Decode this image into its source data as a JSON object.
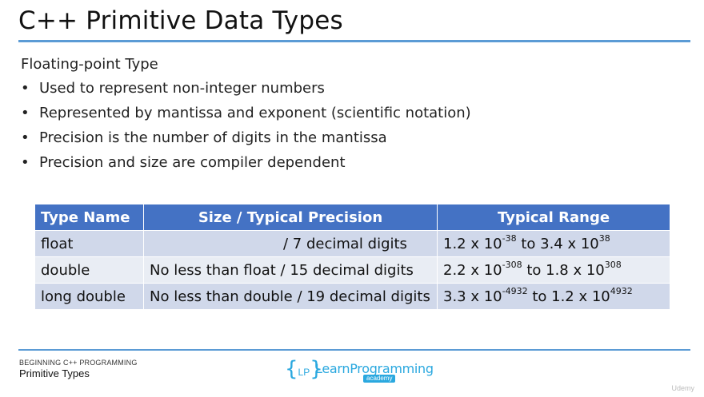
{
  "slide": {
    "title": "C++ Primitive Data Types",
    "subheading": "Floating-point Type",
    "bullets": [
      "Used to represent non-integer numbers",
      "Represented by mantissa and exponent (scientific notation)",
      "Precision is the number of digits in the mantissa",
      "Precision and size are compiler dependent"
    ]
  },
  "table": {
    "headers": [
      "Type Name",
      "Size / Typical Precision",
      "Typical Range"
    ],
    "rows": [
      {
        "type": "float",
        "precision": "/ 7 decimal digits",
        "range_low_mant": "1.2 x 10",
        "range_low_exp": "-38",
        "range_to": " to 3.4 x 10",
        "range_high_exp": "38"
      },
      {
        "type": "double",
        "precision": "No less than float / 15 decimal digits",
        "range_low_mant": "2.2 x 10",
        "range_low_exp": "-308",
        "range_to": " to 1.8 x 10",
        "range_high_exp": "308"
      },
      {
        "type": "long double",
        "precision": "No less than double / 19 decimal digits",
        "range_low_mant": "3.3 x 10",
        "range_low_exp": "-4932",
        "range_to": " to 1.2 x 10",
        "range_high_exp": "4932"
      }
    ]
  },
  "footer": {
    "course": "BEGINNING C++ PROGRAMMING",
    "section": "Primitive Types",
    "logo_bracket_open": "{",
    "logo_lp": "LP",
    "logo_bracket_close": "}",
    "logo_name": "LearnProgramming",
    "logo_tag": "academy",
    "watermark": "Udemy"
  },
  "colors": {
    "accent_rule": "#5b9bd5",
    "table_header": "#4472c4",
    "logo": "#2aa8df"
  }
}
